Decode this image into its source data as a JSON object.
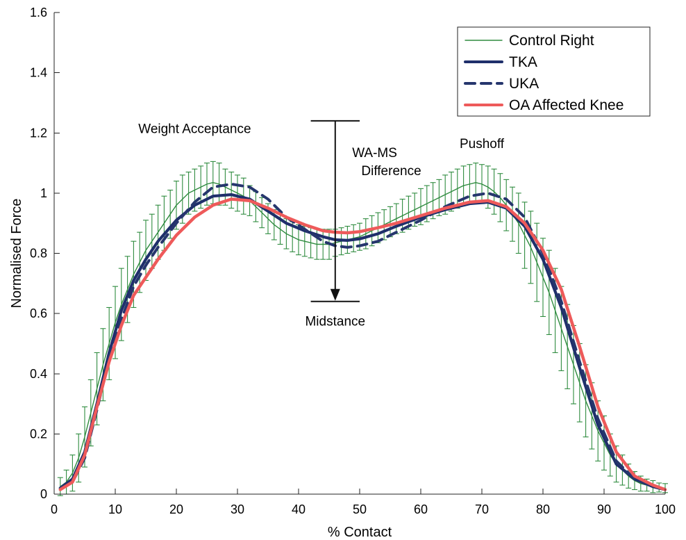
{
  "chart_data": {
    "type": "line",
    "title": "",
    "xlabel": "% Contact",
    "ylabel": "Normalised Force",
    "xlim": [
      0,
      100
    ],
    "ylim": [
      0,
      1.6
    ],
    "x_ticks": [
      0,
      10,
      20,
      30,
      40,
      50,
      60,
      70,
      80,
      90,
      100
    ],
    "y_ticks": [
      0,
      0.2,
      0.4,
      0.6,
      0.8,
      1,
      1.2,
      1.4,
      1.6
    ],
    "grid": false,
    "legend_placement": "top-right",
    "legend": [
      "Control Right",
      "TKA",
      "UKA",
      "OA Affected Knee"
    ],
    "annotations": [
      {
        "text": "Weight Acceptance",
        "x": 23,
        "y": 1.2
      },
      {
        "text": "WA-MS",
        "x": 49,
        "y": 1.12
      },
      {
        "text": "Difference",
        "x": 50.5,
        "y": 1.06
      },
      {
        "text": "Pushoff",
        "x": 70,
        "y": 1.15
      },
      {
        "text": "Midstance",
        "x": 46,
        "y": 0.56
      }
    ],
    "difference_marker": {
      "x": 46,
      "top": 1.24,
      "bottom": 0.64,
      "cap_width": 8
    },
    "series": [
      {
        "name": "Control Right",
        "color": "#2e8b3e",
        "style": "thin-solid",
        "x": [
          1,
          2,
          3,
          4,
          5,
          6,
          7,
          8,
          9,
          10,
          11,
          12,
          13,
          14,
          15,
          16,
          17,
          18,
          19,
          20,
          21,
          22,
          23,
          24,
          25,
          26,
          27,
          28,
          29,
          30,
          31,
          32,
          33,
          34,
          35,
          36,
          37,
          38,
          39,
          40,
          41,
          42,
          43,
          44,
          45,
          46,
          47,
          48,
          49,
          50,
          51,
          52,
          53,
          54,
          55,
          56,
          57,
          58,
          59,
          60,
          61,
          62,
          63,
          64,
          65,
          66,
          67,
          68,
          69,
          70,
          71,
          72,
          73,
          74,
          75,
          76,
          77,
          78,
          79,
          80,
          81,
          82,
          83,
          84,
          85,
          86,
          87,
          88,
          89,
          90,
          91,
          92,
          93,
          94,
          95,
          96,
          97,
          98,
          99,
          100
        ],
        "y": [
          0.025,
          0.04,
          0.07,
          0.12,
          0.19,
          0.27,
          0.35,
          0.43,
          0.5,
          0.57,
          0.63,
          0.68,
          0.73,
          0.77,
          0.81,
          0.84,
          0.87,
          0.9,
          0.93,
          0.96,
          0.98,
          1.0,
          1.01,
          1.02,
          1.03,
          1.035,
          1.03,
          1.02,
          1.01,
          1.0,
          0.99,
          0.975,
          0.955,
          0.935,
          0.915,
          0.895,
          0.88,
          0.865,
          0.855,
          0.845,
          0.84,
          0.835,
          0.83,
          0.83,
          0.83,
          0.835,
          0.84,
          0.845,
          0.85,
          0.855,
          0.865,
          0.875,
          0.885,
          0.895,
          0.905,
          0.915,
          0.925,
          0.935,
          0.945,
          0.955,
          0.965,
          0.975,
          0.985,
          0.995,
          1.005,
          1.015,
          1.025,
          1.03,
          1.035,
          1.03,
          1.02,
          1.005,
          0.985,
          0.96,
          0.93,
          0.9,
          0.86,
          0.82,
          0.77,
          0.72,
          0.67,
          0.61,
          0.55,
          0.49,
          0.43,
          0.37,
          0.31,
          0.26,
          0.21,
          0.17,
          0.13,
          0.1,
          0.08,
          0.06,
          0.045,
          0.035,
          0.03,
          0.025,
          0.022,
          0.02
        ],
        "sd": [
          0.03,
          0.04,
          0.06,
          0.08,
          0.1,
          0.11,
          0.12,
          0.12,
          0.12,
          0.12,
          0.12,
          0.11,
          0.11,
          0.1,
          0.1,
          0.09,
          0.09,
          0.09,
          0.08,
          0.08,
          0.08,
          0.07,
          0.07,
          0.07,
          0.07,
          0.07,
          0.07,
          0.06,
          0.06,
          0.06,
          0.06,
          0.05,
          0.05,
          0.05,
          0.05,
          0.05,
          0.05,
          0.05,
          0.05,
          0.05,
          0.05,
          0.05,
          0.05,
          0.05,
          0.05,
          0.045,
          0.045,
          0.045,
          0.045,
          0.045,
          0.05,
          0.05,
          0.05,
          0.05,
          0.05,
          0.05,
          0.055,
          0.055,
          0.055,
          0.06,
          0.06,
          0.06,
          0.06,
          0.065,
          0.065,
          0.065,
          0.065,
          0.065,
          0.065,
          0.065,
          0.07,
          0.075,
          0.08,
          0.085,
          0.09,
          0.1,
          0.11,
          0.12,
          0.13,
          0.13,
          0.14,
          0.14,
          0.14,
          0.14,
          0.13,
          0.13,
          0.12,
          0.11,
          0.1,
          0.09,
          0.07,
          0.06,
          0.05,
          0.04,
          0.03,
          0.025,
          0.02,
          0.02,
          0.015,
          0.015
        ]
      },
      {
        "name": "TKA",
        "color": "#1f2f6b",
        "style": "solid",
        "x": [
          1,
          3,
          5,
          7,
          9,
          11,
          13,
          15,
          17,
          20,
          23,
          26,
          29,
          32,
          35,
          38,
          41,
          44,
          46,
          48,
          50,
          53,
          56,
          60,
          64,
          68,
          71,
          74,
          77,
          80,
          83,
          86,
          89,
          92,
          95,
          98,
          100
        ],
        "y": [
          0.02,
          0.05,
          0.14,
          0.3,
          0.47,
          0.61,
          0.71,
          0.78,
          0.84,
          0.91,
          0.96,
          0.99,
          0.995,
          0.98,
          0.94,
          0.9,
          0.875,
          0.855,
          0.845,
          0.843,
          0.848,
          0.865,
          0.89,
          0.92,
          0.945,
          0.965,
          0.97,
          0.95,
          0.89,
          0.78,
          0.62,
          0.42,
          0.23,
          0.1,
          0.05,
          0.025,
          0.015
        ]
      },
      {
        "name": "UKA",
        "color": "#26366d",
        "style": "dashed",
        "x": [
          1,
          3,
          5,
          7,
          9,
          11,
          13,
          15,
          17,
          20,
          23,
          26,
          29,
          32,
          35,
          38,
          41,
          44,
          46,
          48,
          50,
          53,
          56,
          60,
          64,
          68,
          71,
          74,
          77,
          80,
          83,
          86,
          89,
          92,
          95,
          98,
          100
        ],
        "y": [
          0.02,
          0.04,
          0.12,
          0.28,
          0.45,
          0.58,
          0.69,
          0.76,
          0.82,
          0.9,
          0.97,
          1.02,
          1.03,
          1.02,
          0.98,
          0.92,
          0.88,
          0.84,
          0.825,
          0.82,
          0.825,
          0.84,
          0.87,
          0.91,
          0.955,
          0.99,
          1.0,
          0.98,
          0.92,
          0.8,
          0.64,
          0.44,
          0.25,
          0.11,
          0.05,
          0.025,
          0.015
        ]
      },
      {
        "name": "OA Affected Knee",
        "color": "#ee5a5a",
        "style": "solid",
        "x": [
          1,
          3,
          5,
          7,
          9,
          11,
          13,
          15,
          17,
          20,
          23,
          26,
          29,
          32,
          35,
          38,
          41,
          44,
          46,
          48,
          50,
          53,
          56,
          60,
          64,
          68,
          71,
          74,
          77,
          80,
          83,
          86,
          89,
          92,
          95,
          98,
          100
        ],
        "y": [
          0.015,
          0.04,
          0.13,
          0.29,
          0.44,
          0.56,
          0.66,
          0.72,
          0.78,
          0.86,
          0.92,
          0.96,
          0.98,
          0.975,
          0.95,
          0.92,
          0.895,
          0.875,
          0.87,
          0.868,
          0.872,
          0.885,
          0.9,
          0.925,
          0.95,
          0.97,
          0.975,
          0.955,
          0.9,
          0.81,
          0.68,
          0.49,
          0.29,
          0.14,
          0.06,
          0.03,
          0.015
        ]
      }
    ]
  }
}
